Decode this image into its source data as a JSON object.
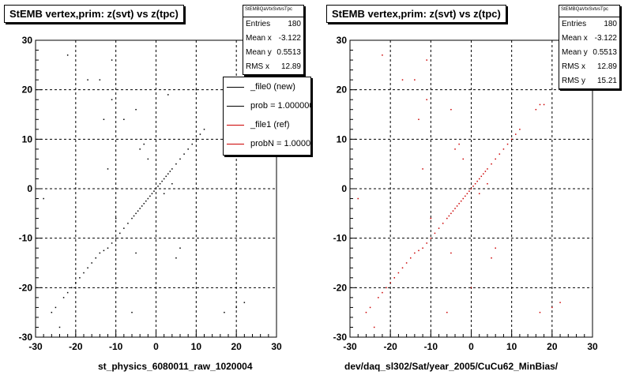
{
  "chart_data": [
    {
      "type": "scatter",
      "title": "StEMB  vertex,prim: z(svt) vs z(tpc)",
      "xlabel": "st_physics_6080011_raw_1020004",
      "ylabel": "",
      "xlim": [
        -30,
        30
      ],
      "ylim": [
        -30,
        30
      ],
      "xticks": [
        "-30",
        "-20",
        "-10",
        "0",
        "10",
        "20",
        "30"
      ],
      "yticks": [
        "-30",
        "-20",
        "-10",
        "0",
        "10",
        "20",
        "30"
      ],
      "grid": true,
      "stats": {
        "name": "StEMBQaVtxSvtvsTpc",
        "rows": [
          {
            "label": "Entries",
            "value": "180"
          },
          {
            "label": "Mean x",
            "value": "-3.122"
          },
          {
            "label": "Mean y",
            "value": "0.5513"
          },
          {
            "label": "RMS x",
            "value": "12.89"
          }
        ]
      },
      "legend": {
        "placement": "top-right",
        "entries": [
          {
            "label": "_file0 (new)",
            "color": "#000000"
          },
          {
            "label": "prob = 1.000000",
            "color": "#000000"
          },
          {
            "label": "_file1 (ref)",
            "color": "#cc0000"
          },
          {
            "label": "probN = 1.000000",
            "color": "#cc0000"
          }
        ]
      },
      "series": [
        {
          "color": "#000000",
          "points": [
            [
              -26,
              -25
            ],
            [
              -25,
              -24
            ],
            [
              -23,
              -22
            ],
            [
              -22,
              -21
            ],
            [
              -21,
              -20
            ],
            [
              -20,
              -19
            ],
            [
              -19,
              -18
            ],
            [
              -18,
              -17
            ],
            [
              -17,
              -16
            ],
            [
              -16,
              -15
            ],
            [
              -15,
              -14
            ],
            [
              -14,
              -13
            ],
            [
              -13,
              -12.5
            ],
            [
              -12,
              -12
            ],
            [
              -11,
              -11
            ],
            [
              -10,
              -10
            ],
            [
              -9,
              -9
            ],
            [
              -8,
              -8
            ],
            [
              -7,
              -7
            ],
            [
              -6,
              -6
            ],
            [
              -5.5,
              -5.5
            ],
            [
              -5,
              -5
            ],
            [
              -4.5,
              -4.5
            ],
            [
              -4,
              -4
            ],
            [
              -3.5,
              -3.5
            ],
            [
              -3,
              -3
            ],
            [
              -2.5,
              -2.5
            ],
            [
              -2,
              -2
            ],
            [
              -1.5,
              -1.5
            ],
            [
              -1,
              -1
            ],
            [
              -0.5,
              -0.5
            ],
            [
              0,
              0
            ],
            [
              0.5,
              0.5
            ],
            [
              1,
              1
            ],
            [
              1.5,
              1.5
            ],
            [
              2,
              2
            ],
            [
              2.5,
              2.5
            ],
            [
              3,
              3
            ],
            [
              3.5,
              3.5
            ],
            [
              4,
              4
            ],
            [
              5,
              5
            ],
            [
              6,
              6
            ],
            [
              7,
              7
            ],
            [
              8,
              8
            ],
            [
              9,
              9
            ],
            [
              10,
              10
            ],
            [
              11,
              11
            ],
            [
              12,
              12
            ],
            [
              -22,
              27
            ],
            [
              -17,
              22
            ],
            [
              -13,
              14
            ],
            [
              -11,
              18
            ],
            [
              -12,
              4
            ],
            [
              -10,
              -6
            ],
            [
              -5,
              -13
            ],
            [
              -3,
              9
            ],
            [
              -4,
              8
            ],
            [
              -5,
              16
            ],
            [
              -14,
              22
            ],
            [
              -28,
              -2
            ],
            [
              2,
              -1
            ],
            [
              0,
              -20
            ],
            [
              5,
              -14
            ],
            [
              6,
              -12
            ],
            [
              17,
              -25
            ],
            [
              20,
              -24
            ],
            [
              22,
              -23
            ],
            [
              10,
              20
            ],
            [
              3,
              19
            ],
            [
              -8,
              14
            ],
            [
              -6,
              -25
            ],
            [
              -11,
              26
            ],
            [
              -24,
              -28
            ],
            [
              4,
              1
            ],
            [
              -2,
              6
            ]
          ]
        }
      ]
    },
    {
      "type": "scatter",
      "title": "StEMB  vertex,prim: z(svt) vs z(tpc)",
      "xlabel": "dev/daq_sl302/Sat/year_2005/CuCu62_MinBias/",
      "ylabel": "",
      "xlim": [
        -30,
        30
      ],
      "ylim": [
        -30,
        30
      ],
      "xticks": [
        "-30",
        "-20",
        "-10",
        "0",
        "10",
        "20",
        "30"
      ],
      "yticks": [
        "-30",
        "-20",
        "-10",
        "0",
        "10",
        "20",
        "30"
      ],
      "grid": true,
      "stats": {
        "name": "StEMBQaVtxSvtvsTpc",
        "rows": [
          {
            "label": "Entries",
            "value": "180"
          },
          {
            "label": "Mean x",
            "value": "-3.122"
          },
          {
            "label": "Mean y",
            "value": "0.5513"
          },
          {
            "label": "RMS x",
            "value": "12.89"
          },
          {
            "label": "RMS y",
            "value": "15.21"
          }
        ]
      },
      "series": [
        {
          "color": "#cc0000",
          "points": [
            [
              -26,
              -25
            ],
            [
              -25,
              -24
            ],
            [
              -23,
              -22
            ],
            [
              -22,
              -21
            ],
            [
              -21,
              -20
            ],
            [
              -20,
              -19
            ],
            [
              -19,
              -18
            ],
            [
              -18,
              -17
            ],
            [
              -17,
              -16
            ],
            [
              -16,
              -15
            ],
            [
              -15,
              -14
            ],
            [
              -14,
              -13
            ],
            [
              -13,
              -12.5
            ],
            [
              -12,
              -12
            ],
            [
              -11,
              -11
            ],
            [
              -10,
              -10
            ],
            [
              -9,
              -9
            ],
            [
              -8,
              -8
            ],
            [
              -7,
              -7
            ],
            [
              -6,
              -6
            ],
            [
              -5.5,
              -5.5
            ],
            [
              -5,
              -5
            ],
            [
              -4.5,
              -4.5
            ],
            [
              -4,
              -4
            ],
            [
              -3.5,
              -3.5
            ],
            [
              -3,
              -3
            ],
            [
              -2.5,
              -2.5
            ],
            [
              -2,
              -2
            ],
            [
              -1.5,
              -1.5
            ],
            [
              -1,
              -1
            ],
            [
              -0.5,
              -0.5
            ],
            [
              0,
              0
            ],
            [
              0.5,
              0.5
            ],
            [
              1,
              1
            ],
            [
              1.5,
              1.5
            ],
            [
              2,
              2
            ],
            [
              2.5,
              2.5
            ],
            [
              3,
              3
            ],
            [
              3.5,
              3.5
            ],
            [
              4,
              4
            ],
            [
              5,
              5
            ],
            [
              6,
              6
            ],
            [
              7,
              7
            ],
            [
              8,
              8
            ],
            [
              9,
              9
            ],
            [
              10,
              10
            ],
            [
              11,
              11
            ],
            [
              12,
              12
            ],
            [
              -22,
              27
            ],
            [
              -17,
              22
            ],
            [
              -13,
              14
            ],
            [
              -11,
              18
            ],
            [
              -12,
              4
            ],
            [
              -10,
              -6
            ],
            [
              -5,
              -13
            ],
            [
              -3,
              9
            ],
            [
              -4,
              8
            ],
            [
              -5,
              16
            ],
            [
              -14,
              22
            ],
            [
              -28,
              -2
            ],
            [
              2,
              -1
            ],
            [
              0,
              -20
            ],
            [
              5,
              -14
            ],
            [
              6,
              -12
            ],
            [
              17,
              -25
            ],
            [
              20,
              -24
            ],
            [
              22,
              -23
            ],
            [
              16,
              16
            ],
            [
              17,
              17
            ],
            [
              18,
              17
            ],
            [
              -6,
              -25
            ],
            [
              -11,
              26
            ],
            [
              -24,
              -28
            ],
            [
              4,
              1
            ],
            [
              -2,
              6
            ]
          ]
        }
      ]
    }
  ]
}
